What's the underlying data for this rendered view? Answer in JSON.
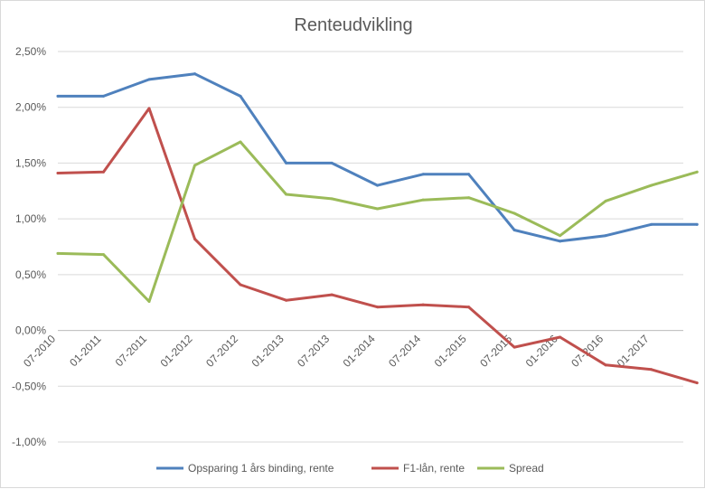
{
  "chart_data": {
    "type": "line",
    "title": "Renteudvikling",
    "xlabel": "",
    "ylabel": "",
    "ylim": [
      -1.0,
      2.5
    ],
    "y_ticks": [
      "-1,00%",
      "-0,50%",
      "0,00%",
      "0,50%",
      "1,00%",
      "1,50%",
      "2,00%",
      "2,50%"
    ],
    "y_tick_values": [
      -1.0,
      -0.5,
      0.0,
      0.5,
      1.0,
      1.5,
      2.0,
      2.5
    ],
    "x_tick_labels": [
      "07-2010",
      "01-2011",
      "07-2011",
      "01-2012",
      "07-2012",
      "01-2013",
      "07-2013",
      "01-2014",
      "07-2014",
      "01-2015",
      "07-2015",
      "01-2016",
      "07-2016",
      "01-2017"
    ],
    "grid": true,
    "legend": "bottom",
    "series": [
      {
        "name": "Opsparing 1 års binding, rente",
        "color": "#4f81bd",
        "values": [
          2.1,
          2.1,
          2.25,
          2.3,
          2.1,
          1.5,
          1.5,
          1.3,
          1.4,
          1.4,
          0.9,
          0.8,
          0.85,
          0.95,
          0.95
        ]
      },
      {
        "name": "F1-lån, rente",
        "color": "#c0504d",
        "values": [
          1.41,
          1.42,
          1.99,
          0.82,
          0.41,
          0.27,
          0.32,
          0.21,
          0.23,
          0.21,
          -0.15,
          -0.06,
          -0.31,
          -0.35,
          -0.47
        ]
      },
      {
        "name": "Spread",
        "color": "#9bbb59",
        "values": [
          0.69,
          0.68,
          0.26,
          1.48,
          1.69,
          1.22,
          1.18,
          1.09,
          1.17,
          1.19,
          1.05,
          0.85,
          1.16,
          1.3,
          1.42
        ]
      }
    ]
  }
}
